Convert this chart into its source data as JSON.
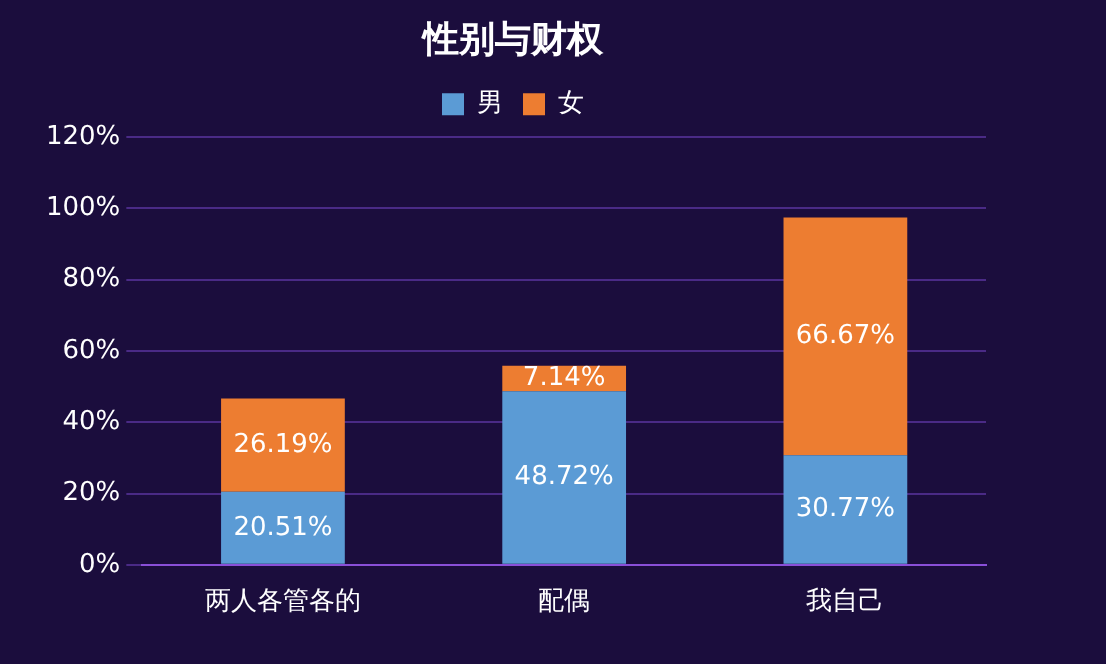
{
  "chart_data": {
    "type": "bar",
    "title": "性别与财权",
    "categories": [
      "两人各管各的",
      "配偶",
      "我自己"
    ],
    "stacked": true,
    "series": [
      {
        "name": "男",
        "color": "#5b9bd5",
        "values": [
          20.51,
          48.72,
          30.77
        ],
        "value_labels": [
          "20.51%",
          "48.72%",
          "30.77%"
        ]
      },
      {
        "name": "女",
        "color": "#ed7d31",
        "values": [
          26.19,
          7.14,
          66.67
        ],
        "value_labels": [
          "26.19%",
          "7.14%",
          "66.67%"
        ]
      }
    ],
    "ylim": [
      0,
      120
    ],
    "yticks": [
      {
        "value": 0,
        "label": "0%"
      },
      {
        "value": 20,
        "label": "20%"
      },
      {
        "value": 40,
        "label": "40%"
      },
      {
        "value": 60,
        "label": "60%"
      },
      {
        "value": 80,
        "label": "80%"
      },
      {
        "value": 100,
        "label": "100%"
      },
      {
        "value": 120,
        "label": "120%"
      }
    ],
    "grid": "y",
    "legend": "top"
  }
}
